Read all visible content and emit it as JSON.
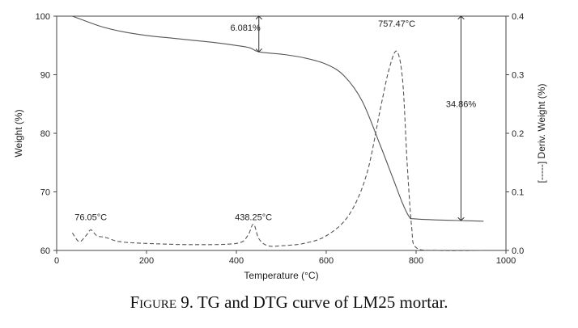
{
  "chart_data": {
    "type": "line",
    "xlabel": "Temperature (°C)",
    "ylabel_left": "Weight (%)",
    "ylabel_right": "[-----] Deriv. Weight (%)",
    "xlim": [
      0,
      1000
    ],
    "ylim_left": [
      60,
      100
    ],
    "ylim_right": [
      0,
      0.4
    ],
    "x_ticks": [
      "0",
      "200",
      "400",
      "600",
      "800",
      "1000"
    ],
    "y_ticks_left": [
      "60",
      "70",
      "80",
      "90",
      "100"
    ],
    "y_ticks_right": [
      "0.0",
      "0.1",
      "0.2",
      "0.3",
      "0.4"
    ],
    "grid": false,
    "series": [
      {
        "axis": "left",
        "style": "solid",
        "x": [
          35,
          60,
          100,
          150,
          200,
          250,
          300,
          350,
          400,
          430,
          450,
          500,
          550,
          600,
          640,
          680,
          720,
          750,
          770,
          785,
          795,
          850,
          900,
          950
        ],
        "y": [
          100,
          99.3,
          98.2,
          97.3,
          96.7,
          96.3,
          95.9,
          95.5,
          95.0,
          94.6,
          93.9,
          93.5,
          92.9,
          91.8,
          89.8,
          85.5,
          78.0,
          72.0,
          68.0,
          65.7,
          65.4,
          65.2,
          65.1,
          65.0
        ]
      },
      {
        "axis": "right",
        "style": "dashed",
        "x": [
          35,
          50,
          65,
          76,
          90,
          110,
          140,
          200,
          300,
          400,
          425,
          438,
          450,
          470,
          500,
          550,
          600,
          650,
          690,
          720,
          740,
          757,
          770,
          780,
          790,
          800,
          850,
          950
        ],
        "y": [
          0.03,
          0.015,
          0.025,
          0.035,
          0.025,
          0.022,
          0.015,
          0.012,
          0.01,
          0.012,
          0.025,
          0.045,
          0.02,
          0.008,
          0.008,
          0.012,
          0.025,
          0.06,
          0.13,
          0.24,
          0.31,
          0.34,
          0.29,
          0.15,
          0.04,
          0.005,
          0.0,
          0.0
        ]
      }
    ],
    "annotations": [
      {
        "text": "6.081%",
        "x": 420,
        "y": 97.5
      },
      {
        "text": "757.47°C",
        "x": 757,
        "y": 98.2
      },
      {
        "text": "34.86%",
        "x": 900,
        "y": 84.5
      },
      {
        "text": "76.05°C",
        "x": 76,
        "y": 65.2
      },
      {
        "text": "438.25°C",
        "x": 438,
        "y": 65.2
      }
    ],
    "arrows": [
      {
        "x": 450,
        "y1": 100,
        "y2": 93.9
      },
      {
        "x": 900,
        "y1": 100,
        "y2": 65.1
      }
    ]
  },
  "caption": {
    "prefix": "Figure",
    "rest": " 9. TG and DTG curve of LM25 mortar."
  }
}
